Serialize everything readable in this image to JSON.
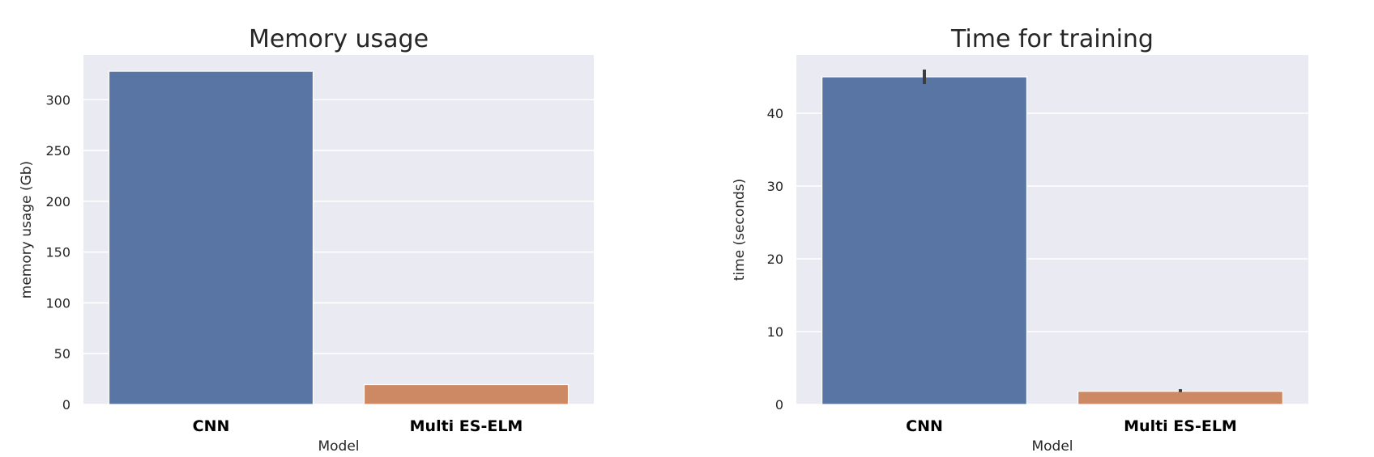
{
  "chart_data": [
    {
      "type": "bar",
      "title": "Memory usage",
      "xlabel": "Model",
      "ylabel": "memory usage (Gb)",
      "categories": [
        "CNN",
        "Multi ES-ELM"
      ],
      "values": [
        328,
        19.5
      ],
      "error_bars": [
        null,
        null
      ],
      "ylim": [
        0,
        344
      ],
      "yticks": [
        "0",
        "50",
        "100",
        "150",
        "200",
        "250",
        "300"
      ],
      "grid": true,
      "legend": "none"
    },
    {
      "type": "bar",
      "title": "Time for training",
      "xlabel": "Model",
      "ylabel": "time (seconds)",
      "categories": [
        "CNN",
        "Multi ES-ELM"
      ],
      "values": [
        45,
        1.8
      ],
      "error_bars": [
        [
          44,
          46
        ],
        [
          1.7,
          2.1
        ]
      ],
      "ylim": [
        0,
        48
      ],
      "yticks": [
        "0",
        "10",
        "20",
        "30",
        "40"
      ],
      "grid": true,
      "legend": "none"
    }
  ],
  "colors": {
    "background": "#eaeaf2",
    "grid": "#ffffff",
    "bars": [
      "#5975a4",
      "#cc8963"
    ],
    "error_bar": "#3d3d3d"
  }
}
